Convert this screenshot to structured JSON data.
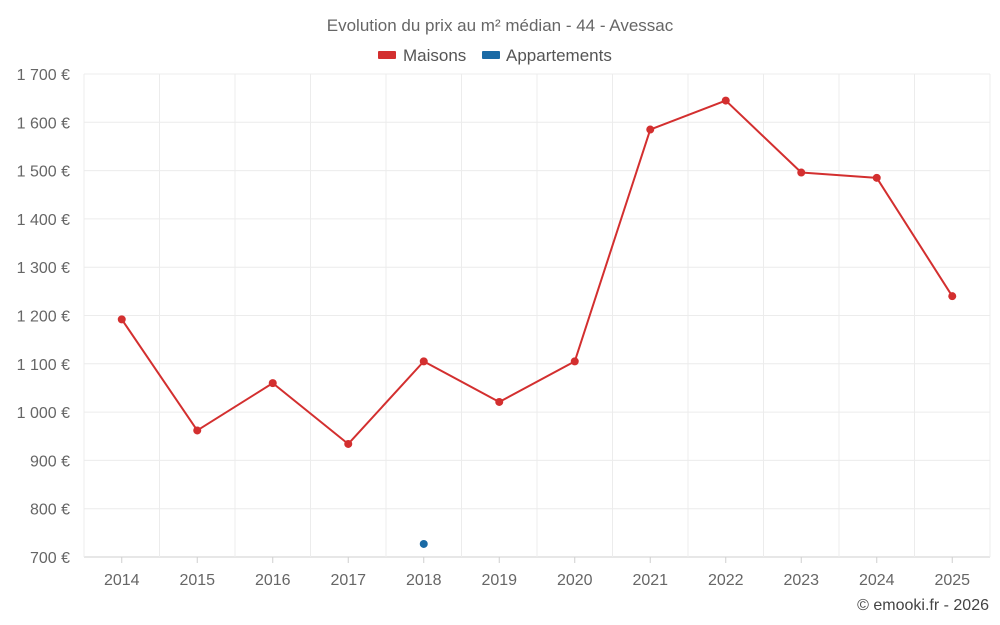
{
  "chart_data": {
    "type": "line",
    "title": "Evolution du prix au m² médian - 44 - Avessac",
    "categories": [
      "2014",
      "2015",
      "2016",
      "2017",
      "2018",
      "2019",
      "2020",
      "2021",
      "2022",
      "2023",
      "2024",
      "2025"
    ],
    "ylim": [
      700,
      1700
    ],
    "yticks": [
      {
        "value": 700,
        "label": "700 €"
      },
      {
        "value": 800,
        "label": "800 €"
      },
      {
        "value": 900,
        "label": "900 €"
      },
      {
        "value": 1000,
        "label": "1 000 €"
      },
      {
        "value": 1100,
        "label": "1 100 €"
      },
      {
        "value": 1200,
        "label": "1 200 €"
      },
      {
        "value": 1300,
        "label": "1 300 €"
      },
      {
        "value": 1400,
        "label": "1 400 €"
      },
      {
        "value": 1500,
        "label": "1 500 €"
      },
      {
        "value": 1600,
        "label": "1 600 €"
      },
      {
        "value": 1700,
        "label": "1 700 €"
      }
    ],
    "series": [
      {
        "name": "Maisons",
        "color": "#d32f2f",
        "values": [
          1192,
          962,
          1060,
          934,
          1105,
          1021,
          1105,
          1585,
          1645,
          1496,
          1485,
          1240
        ]
      },
      {
        "name": "Appartements",
        "color": "#1a6aa5",
        "values": [
          null,
          null,
          null,
          null,
          727,
          null,
          null,
          null,
          null,
          null,
          null,
          null
        ]
      }
    ],
    "legend_position": "top-center",
    "grid": true
  },
  "credit": "© emooki.fr - 2026"
}
